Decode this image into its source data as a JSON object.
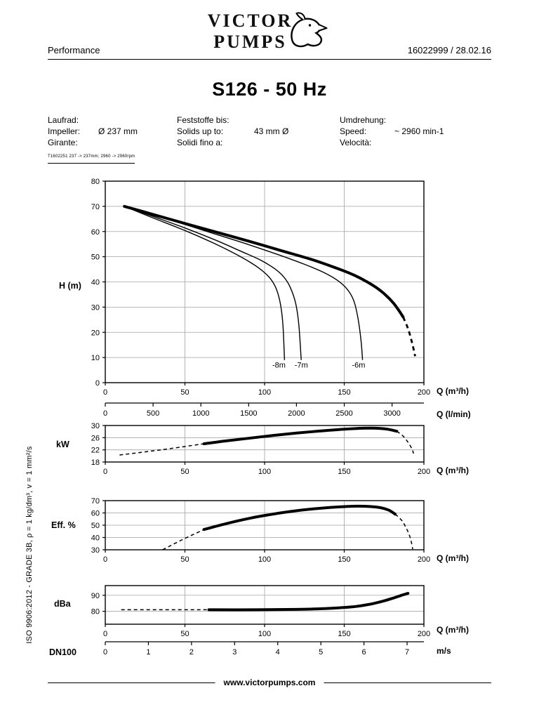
{
  "page": {
    "header_left": "Performance",
    "header_right": "16022999 /  28.02.16",
    "title": "S126 - 50 Hz",
    "footer": "www.victorpumps.com",
    "side_note": "ISO 9906:2012 - GRADE 3B, ρ = 1 kg/dm³, v = 1 mm²/s",
    "logo_line1": "VICTOR",
    "logo_line2": "PUMPS"
  },
  "info": {
    "impeller": {
      "l1": "Laufrad:",
      "l2": "Impeller:",
      "l3": "Girante:",
      "value": "Ø 237 mm",
      "note": "T1602251 237 -> 237mm; 2960 -> 2960rpm"
    },
    "solids": {
      "l1": "Feststoffe bis:",
      "l2": "Solids up to:",
      "l3": "Solidi fino a:",
      "value": "43 mm Ø"
    },
    "speed": {
      "l1": "Umdrehung:",
      "l2": "Speed:",
      "l3": "Velocità:",
      "value": "~ 2960 min-1"
    }
  },
  "chart_data": [
    {
      "id": "head",
      "type": "line",
      "ylabel": "H (m)",
      "xlabel": "Q (m³/h)",
      "xlim": [
        0,
        200
      ],
      "ylim": [
        0,
        80
      ],
      "xticks": [
        0,
        50,
        100,
        150,
        200
      ],
      "yticks": [
        0,
        10,
        20,
        30,
        40,
        50,
        60,
        70,
        80
      ],
      "grid": true,
      "legend_position": "none",
      "series": [
        {
          "name": "head-curve-main",
          "style": "thick",
          "points": [
            [
              12,
              70
            ],
            [
              30,
              66.8
            ],
            [
              50,
              63.2
            ],
            [
              70,
              59.7
            ],
            [
              90,
              56.2
            ],
            [
              110,
              52.5
            ],
            [
              130,
              48.8
            ],
            [
              145,
              45.5
            ],
            [
              155,
              43
            ],
            [
              163,
              40.5
            ],
            [
              170,
              37.8
            ],
            [
              176,
              34.8
            ],
            [
              181,
              31.5
            ],
            [
              185,
              28
            ],
            [
              187,
              26
            ]
          ]
        },
        {
          "name": "head-curve-limit-dashed",
          "style": "dashed-thick",
          "points": [
            [
              187,
              26
            ],
            [
              190,
              21.5
            ],
            [
              192.5,
              16
            ],
            [
              194.5,
              10.5
            ]
          ]
        },
        {
          "name": "suction-lift-8m",
          "style": "thin",
          "points": [
            [
              12,
              70
            ],
            [
              30,
              65.4
            ],
            [
              50,
              60.4
            ],
            [
              68,
              55.4
            ],
            [
              82,
              51
            ],
            [
              92,
              47.4
            ],
            [
              99,
              44.2
            ],
            [
              104,
              41
            ],
            [
              107.5,
              37
            ],
            [
              110,
              31
            ],
            [
              111.5,
              23
            ],
            [
              112.5,
              9
            ]
          ]
        },
        {
          "name": "suction-lift-7m",
          "style": "thin",
          "points": [
            [
              12,
              70
            ],
            [
              30,
              66
            ],
            [
              50,
              61.4
            ],
            [
              70,
              56.4
            ],
            [
              85,
              52.2
            ],
            [
              97,
              48.8
            ],
            [
              106,
              45.4
            ],
            [
              112,
              42
            ],
            [
              116,
              38
            ],
            [
              119.5,
              31.5
            ],
            [
              121.5,
              23
            ],
            [
              123,
              9
            ]
          ]
        },
        {
          "name": "suction-lift-6m",
          "style": "thin",
          "points": [
            [
              12,
              70
            ],
            [
              40,
              64.8
            ],
            [
              70,
              58.8
            ],
            [
              90,
              54.8
            ],
            [
              110,
              50.5
            ],
            [
              125,
              47
            ],
            [
              137,
              43.8
            ],
            [
              146,
              40.5
            ],
            [
              152,
              37
            ],
            [
              156,
              32.5
            ],
            [
              158.5,
              26
            ],
            [
              160.5,
              17
            ],
            [
              161.5,
              9
            ]
          ]
        }
      ],
      "annotations": [
        {
          "text": "-8m",
          "x": 109,
          "y": 6
        },
        {
          "text": "-7m",
          "x": 123,
          "y": 6
        },
        {
          "text": "-6m",
          "x": 159,
          "y": 6
        }
      ]
    },
    {
      "id": "kw",
      "type": "line",
      "ylabel": "kW",
      "xlabel": "Q (m³/h)",
      "xlim": [
        0,
        200
      ],
      "ylim": [
        18,
        30
      ],
      "xticks": [
        0,
        50,
        100,
        150,
        200
      ],
      "yticks": [
        18,
        22,
        26,
        30
      ],
      "grid": true,
      "series": [
        {
          "name": "power-lead-dashed",
          "style": "dashed",
          "points": [
            [
              9,
              20.3
            ],
            [
              35,
              22
            ],
            [
              62,
              24
            ]
          ]
        },
        {
          "name": "power-curve",
          "style": "thick",
          "points": [
            [
              62,
              24
            ],
            [
              75,
              24.9
            ],
            [
              90,
              25.8
            ],
            [
              105,
              26.7
            ],
            [
              120,
              27.5
            ],
            [
              135,
              28.2
            ],
            [
              150,
              28.8
            ],
            [
              162,
              29.1
            ],
            [
              170,
              29.1
            ],
            [
              177,
              28.8
            ],
            [
              183,
              28.1
            ]
          ]
        },
        {
          "name": "power-tail-dashed",
          "style": "dashed",
          "points": [
            [
              183,
              28.1
            ],
            [
              187,
              26.5
            ],
            [
              190,
              24.5
            ],
            [
              192.5,
              22.3
            ],
            [
              193.5,
              20.8
            ]
          ]
        }
      ]
    },
    {
      "id": "eff",
      "type": "line",
      "ylabel": "Eff. %",
      "xlabel": "Q (m³/h)",
      "xlim": [
        0,
        200
      ],
      "ylim": [
        30,
        70
      ],
      "xticks": [
        0,
        50,
        100,
        150,
        200
      ],
      "yticks": [
        30,
        40,
        50,
        60,
        70
      ],
      "grid": true,
      "series": [
        {
          "name": "efficiency-lead-dashed",
          "style": "dashed",
          "points": [
            [
              36,
              30
            ],
            [
              48,
              38
            ],
            [
              62,
              46.5
            ]
          ]
        },
        {
          "name": "efficiency-curve",
          "style": "thick",
          "points": [
            [
              62,
              46.5
            ],
            [
              75,
              51
            ],
            [
              90,
              55.5
            ],
            [
              105,
              59
            ],
            [
              120,
              61.8
            ],
            [
              135,
              63.8
            ],
            [
              148,
              65
            ],
            [
              158,
              65.5
            ],
            [
              166,
              65.2
            ],
            [
              173,
              64.2
            ],
            [
              178,
              62.2
            ],
            [
              182,
              59
            ]
          ]
        },
        {
          "name": "efficiency-tail-dashed",
          "style": "dashed",
          "points": [
            [
              182,
              59
            ],
            [
              186,
              54
            ],
            [
              189,
              47.5
            ],
            [
              191.5,
              39.5
            ],
            [
              193,
              30.5
            ]
          ]
        }
      ]
    },
    {
      "id": "dba",
      "type": "line",
      "ylabel": "dBa",
      "xlabel": "Q (m³/h)",
      "xlim": [
        0,
        200
      ],
      "ylim": [
        72,
        96
      ],
      "xticks": [
        0,
        50,
        100,
        150,
        200
      ],
      "yticks": [
        80,
        90
      ],
      "grid": true,
      "series": [
        {
          "name": "noise-lead-dashed",
          "style": "dashed",
          "points": [
            [
              10,
              81
            ],
            [
              65,
              81
            ]
          ]
        },
        {
          "name": "noise-curve",
          "style": "thick",
          "points": [
            [
              65,
              81
            ],
            [
              95,
              81
            ],
            [
              120,
              81.2
            ],
            [
              140,
              81.8
            ],
            [
              155,
              82.8
            ],
            [
              165,
              84.2
            ],
            [
              173,
              86
            ],
            [
              180,
              88
            ],
            [
              186,
              90
            ],
            [
              190,
              91.2
            ]
          ]
        }
      ]
    }
  ],
  "extra_axes": [
    {
      "id": "lmin",
      "label": "Q (l/min)",
      "xlim": [
        0,
        3333
      ],
      "ticks": [
        0,
        500,
        1000,
        1500,
        2000,
        2500,
        3000
      ]
    },
    {
      "id": "ms",
      "label": "m/s",
      "left_label": "DN100",
      "xlim": [
        0,
        7.39
      ],
      "ticks": [
        0,
        1,
        2,
        3,
        4,
        5,
        6,
        7
      ]
    }
  ]
}
